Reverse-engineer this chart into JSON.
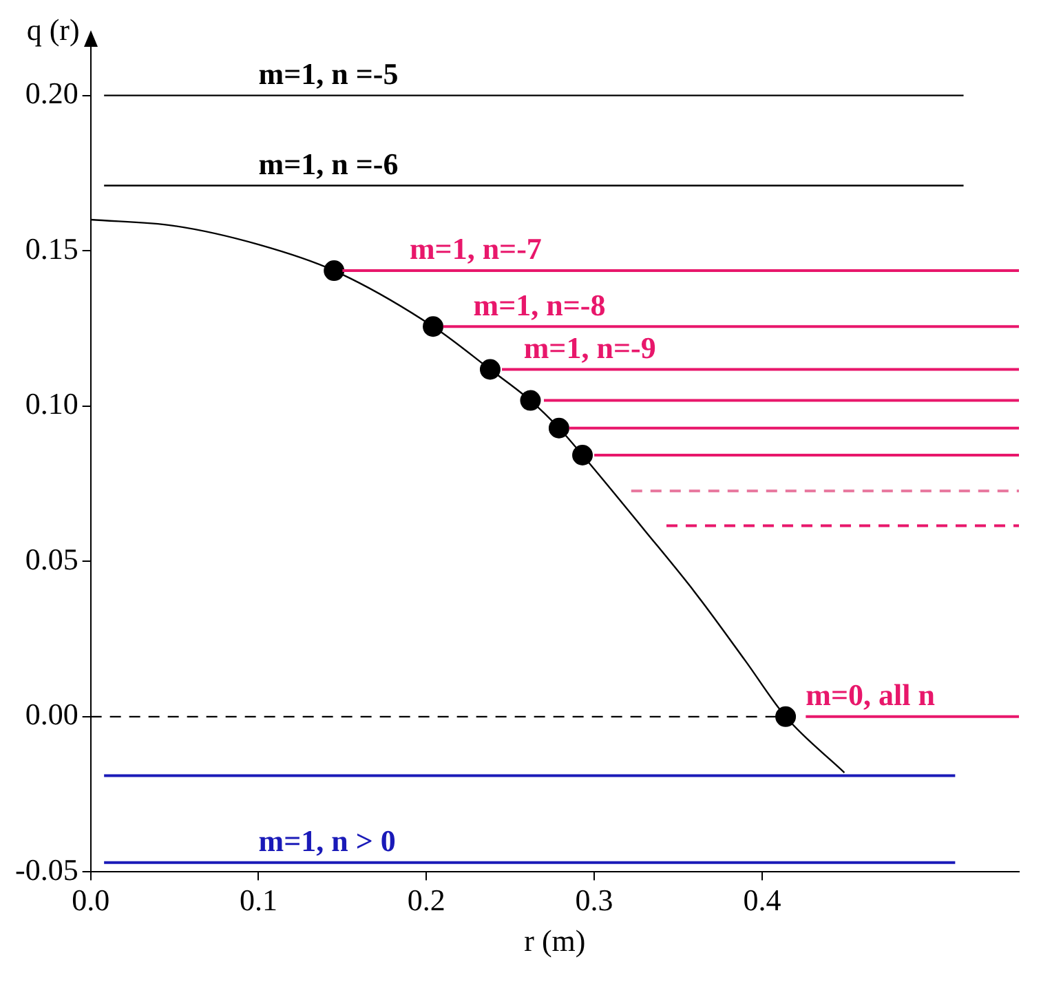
{
  "chart_data": {
    "type": "line",
    "xlabel": "r (m)",
    "ylabel": "q (r)",
    "xlim": [
      0,
      0.553
    ],
    "ylim": [
      -0.05,
      0.22
    ],
    "xticks": [
      {
        "value": 0,
        "label": "0.0"
      },
      {
        "value": 0.1,
        "label": "0.1"
      },
      {
        "value": 0.2,
        "label": "0.2"
      },
      {
        "value": 0.3,
        "label": "0.3"
      },
      {
        "value": 0.4,
        "label": "0.4"
      }
    ],
    "yticks": [
      {
        "value": -0.05,
        "label": "-0.05"
      },
      {
        "value": 0,
        "label": "0.00"
      },
      {
        "value": 0.05,
        "label": "0.05"
      },
      {
        "value": 0.1,
        "label": "0.10"
      },
      {
        "value": 0.15,
        "label": "0.15"
      },
      {
        "value": 0.2,
        "label": "0.20"
      }
    ],
    "grid": false,
    "legend": false,
    "series": [
      {
        "type": "line",
        "color": "#000000",
        "x": [
          0,
          0.05,
          0.1,
          0.145,
          0.204,
          0.238,
          0.262,
          0.279,
          0.293,
          0.33,
          0.36,
          0.39,
          0.414,
          0.449
        ],
        "values": [
          0.16,
          0.158,
          0.152,
          0.1436,
          0.1256,
          0.1118,
          0.1018,
          0.0929,
          0.0842,
          0.06,
          0.04,
          0.018,
          0,
          -0.018
        ]
      },
      {
        "type": "line",
        "color": "#000000",
        "x": [
          0.008,
          0.52
        ],
        "values": [
          0.2,
          0.2
        ]
      },
      {
        "type": "line",
        "color": "#000000",
        "x": [
          0.008,
          0.52
        ],
        "values": [
          0.171,
          0.171
        ]
      },
      {
        "type": "line",
        "color": "#e8176b",
        "x": [
          0.15,
          0.553
        ],
        "values": [
          0.1436,
          0.1436
        ]
      },
      {
        "type": "line",
        "color": "#e8176b",
        "x": [
          0.21,
          0.553
        ],
        "values": [
          0.1256,
          0.1256
        ]
      },
      {
        "type": "line",
        "color": "#e8176b",
        "x": [
          0.245,
          0.553
        ],
        "values": [
          0.1118,
          0.1118
        ]
      },
      {
        "type": "line",
        "color": "#e8176b",
        "x": [
          0.27,
          0.553
        ],
        "values": [
          0.1018,
          0.1018
        ]
      },
      {
        "type": "line",
        "color": "#e8176b",
        "x": [
          0.285,
          0.553
        ],
        "values": [
          0.0929,
          0.0929
        ]
      },
      {
        "type": "line",
        "color": "#e8176b",
        "x": [
          0.3,
          0.553
        ],
        "values": [
          0.0842,
          0.0842
        ]
      },
      {
        "type": "line",
        "color": "#e87aa0",
        "line_style": "dashed",
        "x": [
          0.322,
          0.553
        ],
        "values": [
          0.0727,
          0.0727
        ]
      },
      {
        "type": "line",
        "color": "#e8176b",
        "line_style": "dashed",
        "x": [
          0.343,
          0.553
        ],
        "values": [
          0.0615,
          0.0615
        ]
      },
      {
        "type": "line",
        "color": "#000000",
        "line_style": "dashed",
        "x": [
          0,
          0.41
        ],
        "values": [
          0,
          0
        ]
      },
      {
        "type": "line",
        "color": "#e8176b",
        "x": [
          0.426,
          0.553
        ],
        "values": [
          0,
          0
        ]
      },
      {
        "type": "line",
        "color": "#1a1ab8",
        "x": [
          0.008,
          0.515
        ],
        "values": [
          -0.019,
          -0.019
        ]
      },
      {
        "type": "line",
        "color": "#1a1ab8",
        "x": [
          0.008,
          0.515
        ],
        "values": [
          -0.047,
          -0.047
        ]
      },
      {
        "type": "scatter",
        "color": "#000000",
        "marker": "circle",
        "x": [
          0.145,
          0.204,
          0.238,
          0.262,
          0.279,
          0.293,
          0.414
        ],
        "values": [
          0.1436,
          0.1256,
          0.1118,
          0.1018,
          0.0929,
          0.0842,
          0
        ]
      }
    ],
    "annotations": [
      {
        "text": "m=1, n =-5",
        "x": 0.1,
        "y": 0.2
      },
      {
        "text": "m=1, n =-6",
        "x": 0.1,
        "y": 0.171
      },
      {
        "text": "m=1, n=-7",
        "x": 0.19,
        "y": 0.1436
      },
      {
        "text": "m=1, n=-8",
        "x": 0.228,
        "y": 0.1256
      },
      {
        "text": "m=1, n=-9",
        "x": 0.258,
        "y": 0.1118
      },
      {
        "text": "m=0, all n",
        "x": 0.426,
        "y": 0
      },
      {
        "text": "m=1, n > 0",
        "x": 0.1,
        "y": -0.047
      }
    ]
  }
}
